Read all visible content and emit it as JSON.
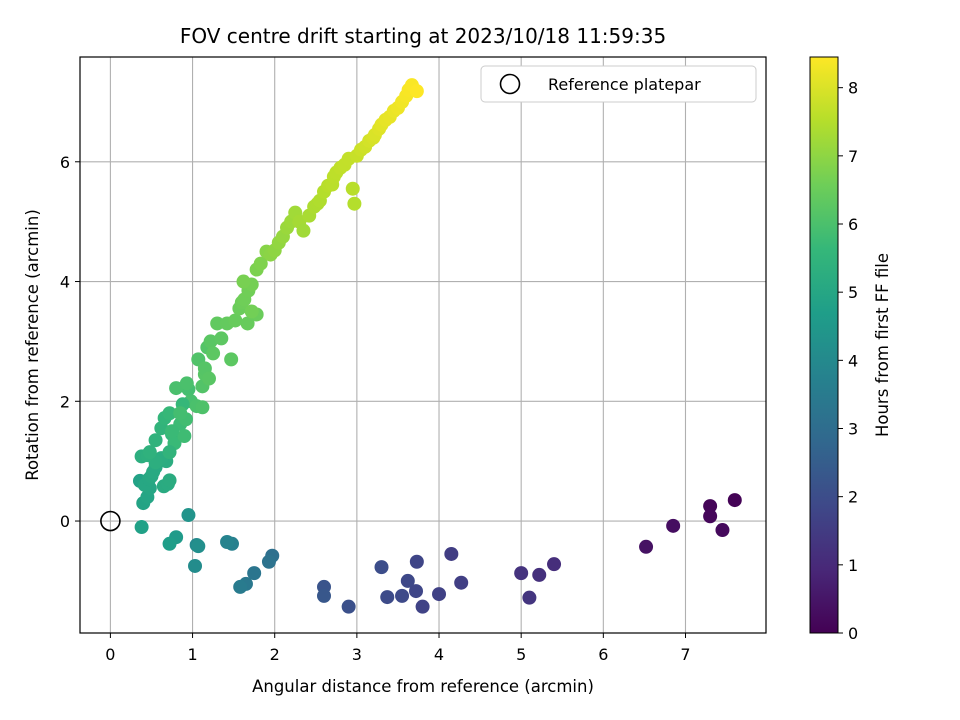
{
  "chart_data": {
    "type": "scatter",
    "title": "FOV centre drift starting at 2023/10/18 11:59:35",
    "xlabel": "Angular distance from reference (arcmin)",
    "ylabel": "Rotation from reference (arcmin)",
    "xlim": [
      -0.37,
      7.98
    ],
    "ylim": [
      -1.87,
      7.75
    ],
    "xticks": [
      0,
      1,
      2,
      3,
      4,
      5,
      6,
      7
    ],
    "yticks": [
      0,
      2,
      4,
      6
    ],
    "grid": true,
    "legend": {
      "placement": "top-right",
      "entries": [
        {
          "label": "Reference platepar",
          "marker": "open-circle"
        }
      ]
    },
    "reference_point": {
      "x": 0,
      "y": 0
    },
    "colorbar": {
      "label": "Hours from first FF file",
      "colormap": "viridis",
      "range": [
        0,
        8.45
      ],
      "ticks": [
        0,
        1,
        2,
        3,
        4,
        5,
        6,
        7,
        8
      ]
    },
    "colormap_stops": [
      "#440154",
      "#482878",
      "#3e4989",
      "#31688e",
      "#26828e",
      "#1f9e89",
      "#35b779",
      "#6ece58",
      "#b5de2b",
      "#fde725"
    ],
    "point_series": {
      "x": [
        7.6,
        7.3,
        7.3,
        7.45,
        6.85,
        6.52,
        5.4,
        5.22,
        5.0,
        5.1,
        4.15,
        4.27,
        4.0,
        3.8,
        3.73,
        3.72,
        3.62,
        3.55,
        3.37,
        3.3,
        2.9,
        2.6,
        2.6,
        1.97,
        1.93,
        1.75,
        1.65,
        1.58,
        1.48,
        1.42,
        1.05,
        1.03,
        1.07,
        0.95,
        0.8,
        0.72,
        0.38,
        0.36,
        0.4,
        0.45,
        0.48,
        0.42,
        0.47,
        0.5,
        0.52,
        0.55,
        0.65,
        0.7,
        0.72,
        0.68,
        0.62,
        0.55,
        0.38,
        0.45,
        0.48,
        0.55,
        0.62,
        0.66,
        0.75,
        0.72,
        0.78,
        0.85,
        0.9,
        0.92,
        0.95,
        0.98,
        0.88,
        0.8,
        0.72,
        0.75,
        0.85,
        0.93,
        1.05,
        1.12,
        1.07,
        1.18,
        1.15,
        1.22,
        1.25,
        1.12,
        1.15,
        1.2,
        1.3,
        1.35,
        1.42,
        1.47,
        1.52,
        1.57,
        1.6,
        1.63,
        1.68,
        1.72,
        1.78,
        1.62,
        1.67,
        1.72,
        1.78,
        1.83,
        1.9,
        1.95,
        2.0,
        2.05,
        2.1,
        2.15,
        2.2,
        2.25,
        2.3,
        2.35,
        2.42,
        2.48,
        2.52,
        2.55,
        2.6,
        2.65,
        2.7,
        2.72,
        2.75,
        2.8,
        2.85,
        2.9,
        2.95,
        2.97,
        3.0,
        3.05,
        3.1,
        3.15,
        3.2,
        3.22,
        3.27,
        3.3,
        3.35,
        3.4,
        3.45,
        3.5,
        3.55,
        3.6,
        3.63,
        3.67,
        3.73
      ],
      "y": [
        0.35,
        0.25,
        0.08,
        -0.15,
        -0.08,
        -0.43,
        -0.72,
        -0.9,
        -0.87,
        -1.28,
        -0.55,
        -1.03,
        -1.22,
        -1.43,
        -0.68,
        -1.17,
        -1.0,
        -1.25,
        -1.27,
        -0.77,
        -1.43,
        -1.1,
        -1.25,
        -0.58,
        -0.68,
        -0.87,
        -1.05,
        -1.1,
        -0.38,
        -0.35,
        -0.4,
        -0.75,
        -0.42,
        0.1,
        -0.27,
        -0.38,
        -0.1,
        0.67,
        0.3,
        0.4,
        0.55,
        0.6,
        0.7,
        0.75,
        0.82,
        0.9,
        0.58,
        0.62,
        0.68,
        1.0,
        1.05,
        0.98,
        1.08,
        1.1,
        1.15,
        1.35,
        1.55,
        1.72,
        1.45,
        1.8,
        1.3,
        1.62,
        1.42,
        1.7,
        2.2,
        2.0,
        1.95,
        2.22,
        1.15,
        1.5,
        1.8,
        2.3,
        1.92,
        1.9,
        2.7,
        2.9,
        2.45,
        3.0,
        2.8,
        2.25,
        2.55,
        2.38,
        3.3,
        3.05,
        3.3,
        2.7,
        3.35,
        3.55,
        3.65,
        3.7,
        3.85,
        3.95,
        3.45,
        4.0,
        3.3,
        3.5,
        4.2,
        4.3,
        4.5,
        4.45,
        4.52,
        4.65,
        4.75,
        4.9,
        5.0,
        5.15,
        5.0,
        4.85,
        5.1,
        5.25,
        5.3,
        5.35,
        5.5,
        5.6,
        5.62,
        5.75,
        5.82,
        5.9,
        5.95,
        6.05,
        5.55,
        5.3,
        6.1,
        6.2,
        6.25,
        6.35,
        6.4,
        6.45,
        6.55,
        6.62,
        6.7,
        6.75,
        6.85,
        6.9,
        7.0,
        7.1,
        7.2,
        7.28,
        7.18
      ],
      "hours": [
        0.05,
        0.1,
        0.15,
        0.2,
        0.3,
        0.4,
        1.1,
        1.18,
        1.25,
        1.3,
        1.55,
        1.6,
        1.65,
        1.7,
        1.75,
        1.8,
        1.85,
        1.9,
        1.95,
        2.0,
        2.1,
        2.2,
        2.3,
        3.1,
        3.2,
        3.3,
        3.4,
        3.5,
        3.7,
        3.8,
        4.0,
        4.1,
        4.2,
        4.35,
        4.6,
        4.7,
        4.8,
        4.85,
        4.9,
        4.95,
        5.0,
        5.02,
        5.05,
        5.08,
        5.1,
        5.12,
        5.15,
        5.18,
        5.2,
        5.22,
        5.25,
        5.28,
        5.3,
        5.35,
        5.4,
        5.45,
        5.5,
        5.55,
        5.6,
        5.65,
        5.7,
        5.75,
        5.8,
        5.85,
        5.9,
        5.95,
        5.62,
        5.98,
        5.5,
        5.72,
        5.88,
        6.0,
        6.0,
        6.05,
        6.1,
        6.15,
        6.2,
        6.25,
        6.3,
        6.12,
        6.18,
        6.22,
        6.35,
        6.3,
        6.4,
        6.28,
        6.45,
        6.5,
        6.55,
        6.58,
        6.6,
        6.65,
        6.5,
        6.7,
        6.45,
        6.62,
        6.75,
        6.8,
        6.9,
        6.95,
        7.0,
        7.05,
        7.1,
        7.15,
        7.2,
        7.25,
        7.3,
        7.25,
        7.35,
        7.4,
        7.42,
        7.45,
        7.5,
        7.55,
        7.58,
        7.6,
        7.62,
        7.65,
        7.68,
        7.7,
        7.55,
        7.5,
        7.75,
        7.8,
        7.85,
        7.9,
        7.95,
        8.0,
        8.05,
        8.1,
        8.15,
        8.18,
        8.2,
        8.25,
        8.3,
        8.35,
        8.38,
        8.4,
        8.45
      ]
    }
  }
}
